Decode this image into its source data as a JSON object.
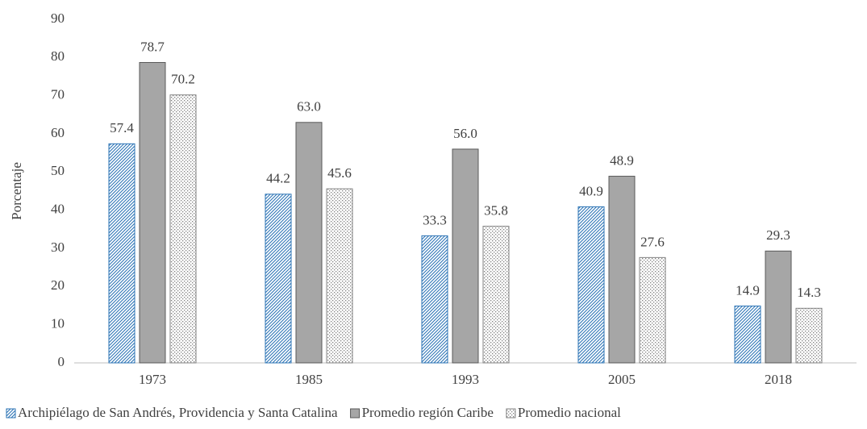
{
  "chart_data": {
    "type": "bar",
    "y_label": "Porcentaje",
    "categories": [
      "1973",
      "1985",
      "1993",
      "2005",
      "2018"
    ],
    "series": [
      {
        "name": "Archipiélago de San Andrés, Providencia y Santa Catalina",
        "color": "#2e75b6",
        "fill_style": "hatch",
        "values": [
          57.4,
          44.2,
          33.3,
          40.9,
          14.9
        ],
        "value_labels": [
          "57.4",
          "44.2",
          "33.3",
          "40.9",
          "14.9"
        ]
      },
      {
        "name": "Promedio región Caribe",
        "color": "#a6a6a6",
        "fill_style": "solid",
        "values": [
          78.7,
          63.0,
          56.0,
          48.9,
          29.3
        ],
        "value_labels": [
          "78.7",
          "63.0",
          "56.0",
          "48.9",
          "29.3"
        ]
      },
      {
        "name": "Promedio nacional",
        "color": "#808080",
        "fill_style": "dots",
        "values": [
          70.2,
          45.6,
          35.8,
          27.6,
          14.3
        ],
        "value_labels": [
          "70.2",
          "45.6",
          "35.8",
          "27.6",
          "14.3"
        ]
      }
    ],
    "ylim": [
      0,
      90
    ],
    "yticks": [
      0,
      10,
      20,
      30,
      40,
      50,
      60,
      70,
      80,
      90
    ],
    "grid": false,
    "legend": "bottom"
  }
}
